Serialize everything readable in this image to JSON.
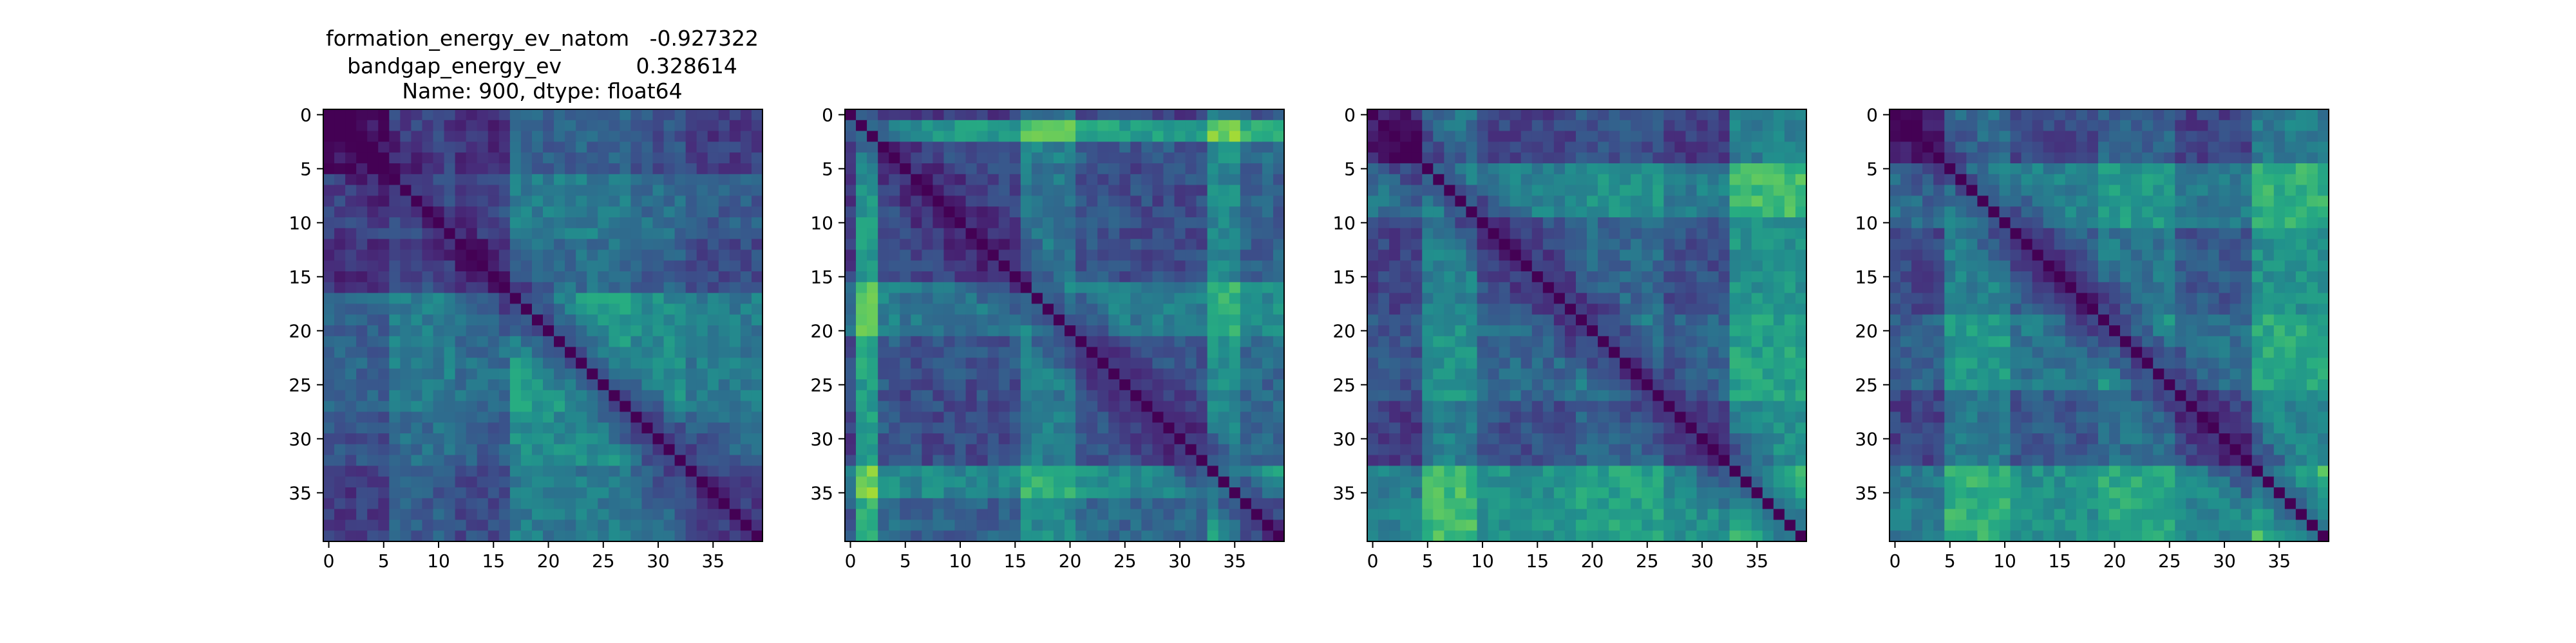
{
  "chart_data": {
    "type": "heatmap",
    "title_lines": [
      "formation_energy_ev_natom   -0.927322",
      "bandgap_energy_ev           0.328614",
      "Name: 900, dtype: float64"
    ],
    "matrix_size": 40,
    "colormap": "viridis",
    "diagonal_value": 0,
    "value_range": [
      0,
      1
    ],
    "grid": false,
    "x_ticks": [
      "0",
      "5",
      "10",
      "15",
      "20",
      "25",
      "30",
      "35"
    ],
    "y_ticks": [
      "0",
      "5",
      "10",
      "15",
      "20",
      "25",
      "30",
      "35"
    ],
    "panels": [
      {
        "blocks": [
          0,
          6,
          12,
          17,
          28,
          33,
          40
        ],
        "levels": [
          0.08,
          0.3,
          0.18,
          0.55,
          0.42,
          0.28
        ]
      },
      {
        "blocks": [
          0,
          1,
          3,
          5,
          16,
          21,
          25,
          33,
          36,
          40
        ],
        "levels": [
          0.15,
          0.85,
          0.3,
          0.22,
          0.58,
          0.3,
          0.25,
          0.72,
          0.4
        ]
      },
      {
        "blocks": [
          0,
          5,
          10,
          19,
          27,
          33,
          40
        ],
        "levels": [
          0.12,
          0.62,
          0.28,
          0.4,
          0.22,
          0.75
        ]
      },
      {
        "blocks": [
          0,
          5,
          11,
          19,
          26,
          33,
          40
        ],
        "levels": [
          0.14,
          0.58,
          0.3,
          0.5,
          0.25,
          0.7
        ]
      }
    ]
  }
}
